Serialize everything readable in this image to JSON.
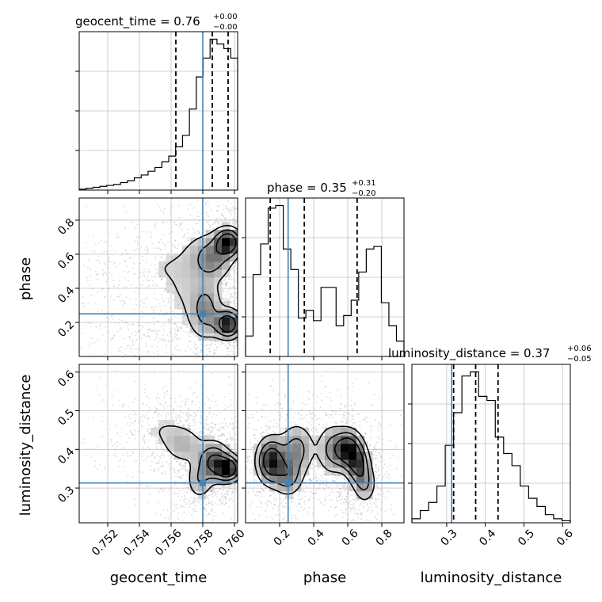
{
  "chart_data": {
    "type": "corner",
    "colors": {
      "truth": "#4682b4",
      "hist": "#000000",
      "grid": "#c0c0c0",
      "samples": "#9a9a9a"
    },
    "grid": true,
    "parameters": [
      {
        "name": "geocent_time",
        "axis_label": "geocent_time",
        "title_prefix": "geocent_time = 0.76",
        "title_sup": "+0.00",
        "title_sub": "−0.00",
        "range": [
          0.7502,
          0.7602
        ],
        "ticks": [
          0.752,
          0.754,
          0.756,
          0.758,
          0.76
        ],
        "tick_labels": [
          "0.752",
          "0.754",
          "0.756",
          "0.758",
          "0.760"
        ],
        "truth": 0.758,
        "quantiles": [
          0.7563,
          0.7586,
          0.7596
        ],
        "hist": [
          1,
          2,
          3,
          4,
          5,
          6,
          8,
          10,
          13,
          16,
          20,
          24,
          30,
          36,
          46,
          58,
          86,
          120,
          140,
          160,
          155,
          150,
          140
        ]
      },
      {
        "name": "phase",
        "axis_label": "phase",
        "title_prefix": "phase = 0.35",
        "title_sup": "+0.31",
        "title_sub": "−0.20",
        "range": [
          0.0,
          0.93
        ],
        "ticks": [
          0.2,
          0.4,
          0.6,
          0.8
        ],
        "tick_labels": [
          "0.2",
          "0.4",
          "0.6",
          "0.8"
        ],
        "truth": 0.25,
        "quantiles": [
          0.145,
          0.345,
          0.655
        ],
        "hist": [
          8,
          32,
          44,
          58,
          59,
          42,
          34,
          15,
          18,
          14,
          27,
          27,
          12,
          16,
          22,
          33,
          42,
          43,
          21,
          12,
          6
        ]
      },
      {
        "name": "luminosity_distance",
        "axis_label": "luminosity_distance",
        "title_prefix": "luminosity_distance = 0.37",
        "title_sup": "+0.06",
        "title_sub": "−0.05",
        "range": [
          0.21,
          0.62
        ],
        "ticks": [
          0.3,
          0.4,
          0.5,
          0.6
        ],
        "tick_labels": [
          "0.3",
          "0.4",
          "0.5",
          "0.6"
        ],
        "truth": 0.313,
        "quantiles": [
          0.318,
          0.375,
          0.433
        ],
        "hist": [
          2,
          6,
          10,
          18,
          38,
          54,
          72,
          74,
          62,
          60,
          42,
          34,
          28,
          18,
          12,
          8,
          4,
          2,
          1
        ]
      }
    ],
    "density_peaks": {
      "phase_vs_geocent_time": [
        {
          "x": 0.7596,
          "y": 0.67,
          "sx": 0.0005,
          "sy": 0.05,
          "w": 1.0
        },
        {
          "x": 0.7596,
          "y": 0.19,
          "sx": 0.0005,
          "sy": 0.05,
          "w": 1.0
        },
        {
          "x": 0.7582,
          "y": 0.27,
          "sx": 0.0006,
          "sy": 0.1,
          "w": 0.45
        },
        {
          "x": 0.7586,
          "y": 0.58,
          "sx": 0.0008,
          "sy": 0.08,
          "w": 0.5
        },
        {
          "x": 0.7568,
          "y": 0.45,
          "sx": 0.0012,
          "sy": 0.2,
          "w": 0.18
        },
        {
          "x": 0.7545,
          "y": 0.52,
          "sx": 0.0015,
          "sy": 0.05,
          "w": 0.08
        },
        {
          "x": 0.7545,
          "y": 0.12,
          "sx": 0.0015,
          "sy": 0.05,
          "w": 0.08
        }
      ],
      "luminosity_distance_vs_geocent_time": [
        {
          "x": 0.7596,
          "y": 0.35,
          "sx": 0.0005,
          "sy": 0.02,
          "w": 1.0
        },
        {
          "x": 0.7587,
          "y": 0.37,
          "sx": 0.0006,
          "sy": 0.03,
          "w": 0.7
        },
        {
          "x": 0.7578,
          "y": 0.32,
          "sx": 0.0005,
          "sy": 0.03,
          "w": 0.35
        },
        {
          "x": 0.7568,
          "y": 0.41,
          "sx": 0.0008,
          "sy": 0.03,
          "w": 0.3
        },
        {
          "x": 0.7555,
          "y": 0.45,
          "sx": 0.001,
          "sy": 0.03,
          "w": 0.15
        }
      ],
      "luminosity_distance_vs_phase": [
        {
          "x": 0.15,
          "y": 0.37,
          "sx": 0.05,
          "sy": 0.035,
          "w": 1.0
        },
        {
          "x": 0.6,
          "y": 0.4,
          "sx": 0.05,
          "sy": 0.03,
          "w": 1.0
        },
        {
          "x": 0.66,
          "y": 0.36,
          "sx": 0.04,
          "sy": 0.03,
          "w": 0.7
        },
        {
          "x": 0.3,
          "y": 0.4,
          "sx": 0.06,
          "sy": 0.04,
          "w": 0.5
        },
        {
          "x": 0.5,
          "y": 0.4,
          "sx": 0.05,
          "sy": 0.04,
          "w": 0.4
        },
        {
          "x": 0.25,
          "y": 0.33,
          "sx": 0.05,
          "sy": 0.03,
          "w": 0.5
        },
        {
          "x": 0.7,
          "y": 0.31,
          "sx": 0.04,
          "sy": 0.03,
          "w": 0.4
        }
      ]
    }
  }
}
